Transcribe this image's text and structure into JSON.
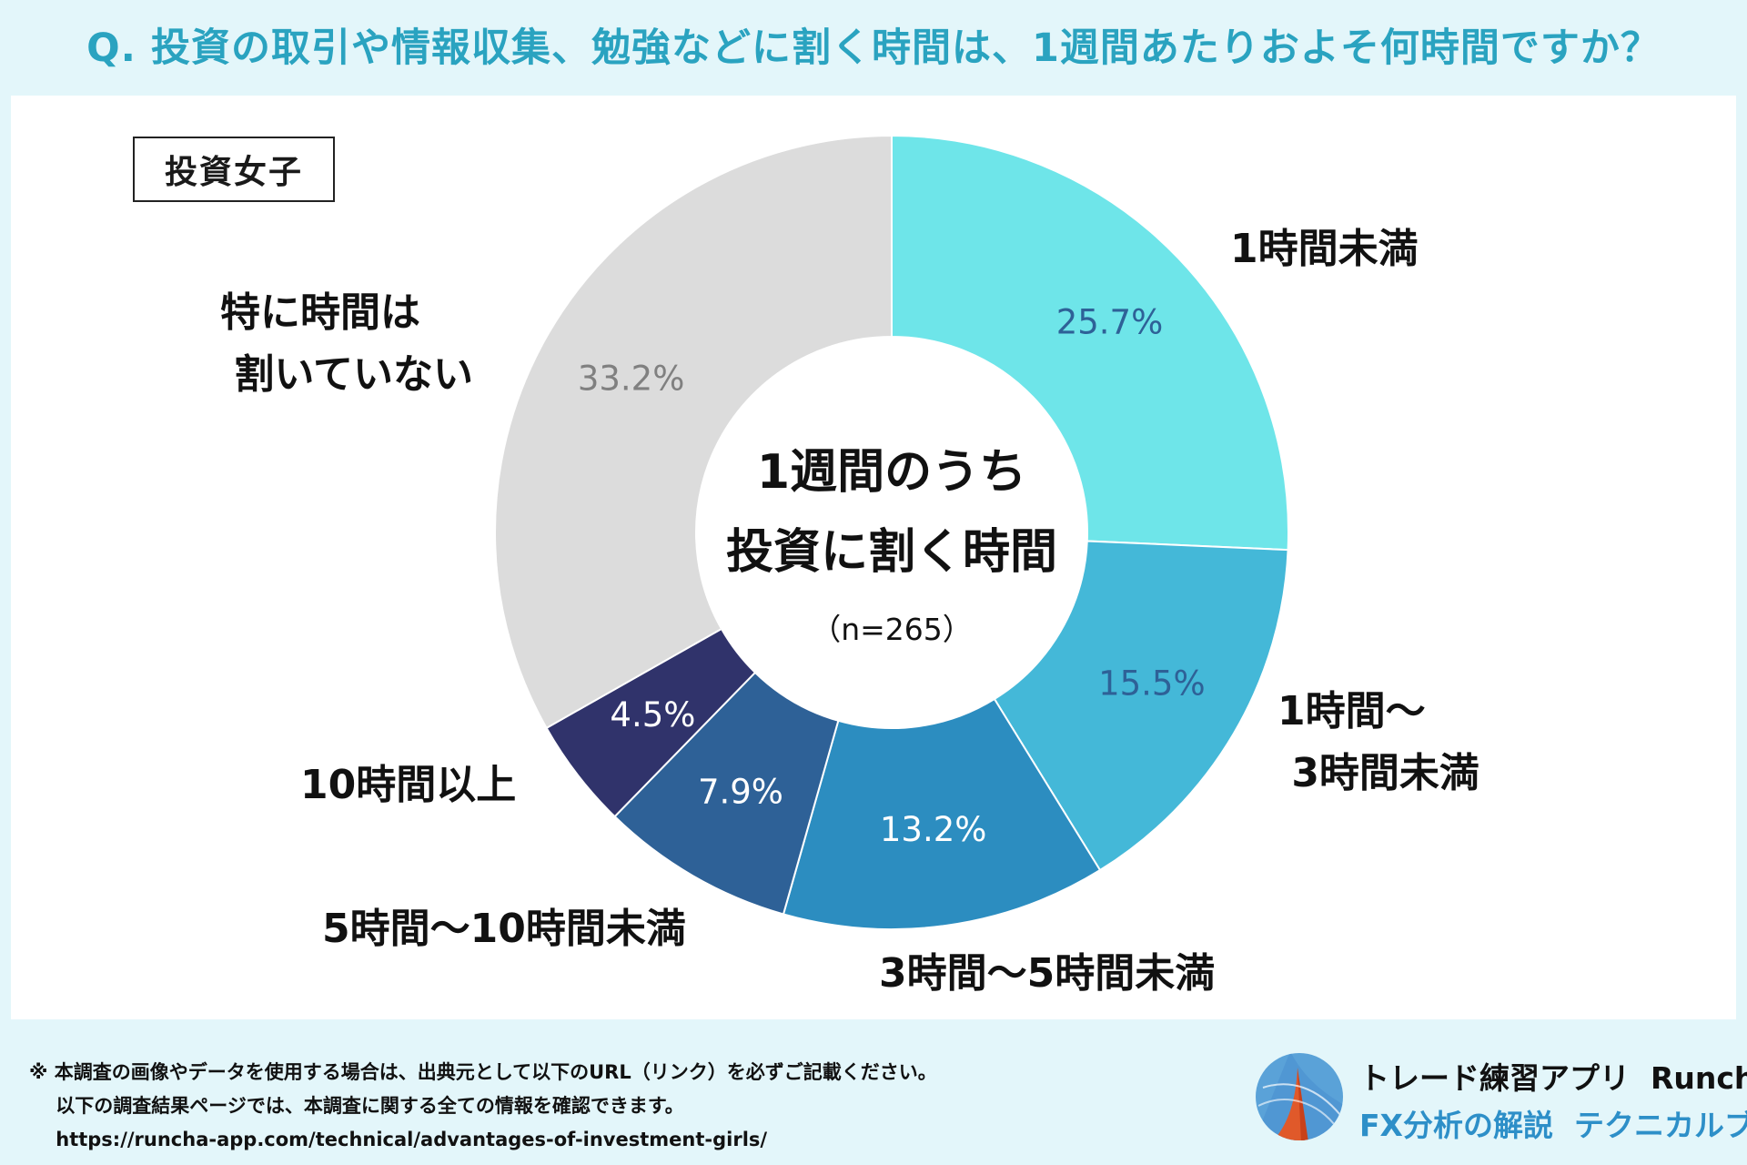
{
  "header": {
    "title": "Q. 投資の取引や情報収集、勉強などに割く時間は、1週間あたりおよそ何時間ですか？"
  },
  "badge": "投資女子",
  "center": {
    "line1": "1週間のうち",
    "line2": "投資に割く時間",
    "n": "（n=265）"
  },
  "chart_data": {
    "type": "pie",
    "donut": true,
    "title": "1週間のうち投資に割く時間",
    "sample_size": "n=265",
    "categories": [
      "1時間未満",
      "1時間〜3時間未満",
      "3時間〜5時間未満",
      "5時間〜10時間未満",
      "10時間以上",
      "特に時間は割いていない"
    ],
    "values": [
      25.7,
      15.5,
      13.2,
      7.9,
      4.5,
      33.2
    ],
    "value_labels": [
      "25.7%",
      "15.5%",
      "13.2%",
      "7.9%",
      "4.5%",
      "33.2%"
    ],
    "category_labels": [
      "1時間未満",
      "1時間〜\n 3時間未満",
      "3時間〜5時間未満",
      "5時間〜10時間未満",
      "10時間以上",
      "特に時間は\n 割いていない"
    ],
    "colors": [
      "#6ee5e9",
      "#44b8d8",
      "#2c8dc0",
      "#2e6197",
      "#30336b",
      "#dcdcdc"
    ],
    "label_colors": [
      "#2e6197",
      "#2e6197",
      "#ffffff",
      "#ffffff",
      "#ffffff",
      "#808080"
    ],
    "start_angle_deg": 0,
    "direction": "clockwise"
  },
  "footer": {
    "note_line1": "※ 本調査の画像やデータを使用する場合は、出典元として以下のURL（リンク）を必ずご記載ください。",
    "note_line2": "    以下の調査結果ページでは、本調査に関する全ての情報を確認できます。",
    "url": "    https://runcha-app.com/technical/advantages-of-investment-girls/"
  },
  "brand": {
    "name": "トレード練習アプリ  Runcha",
    "subtitle": "FX分析の解説  テクニカルブック",
    "accent": "#2d8fc8"
  }
}
